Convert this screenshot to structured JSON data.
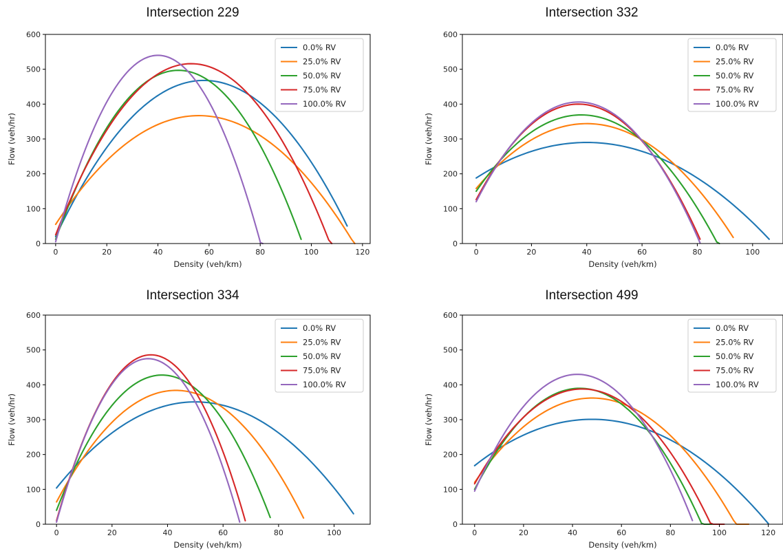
{
  "colors": {
    "series": [
      "#1f77b4",
      "#ff7f0e",
      "#2ca02c",
      "#d62728",
      "#9467bd"
    ],
    "axis": "#000000",
    "legend_border": "#cccccc"
  },
  "chart_data": [
    {
      "type": "line",
      "title": "Intersection 229",
      "xlabel": "Density (veh/km)",
      "ylabel": "Flow (veh/hr)",
      "xlim": [
        -4,
        123
      ],
      "ylim": [
        0,
        600
      ],
      "xticks": [
        0,
        20,
        40,
        60,
        80,
        100,
        120
      ],
      "yticks": [
        0,
        100,
        200,
        300,
        400,
        500,
        600
      ],
      "grid": false,
      "legend_position": "top-right",
      "series": [
        {
          "name": "0.0% RV",
          "vertex": [
            58,
            468
          ],
          "y0": 20,
          "x_end": 114
        },
        {
          "name": "25.0% RV",
          "vertex": [
            56,
            367
          ],
          "y0": 55,
          "x_end": 117
        },
        {
          "name": "50.0% RV",
          "vertex": [
            48,
            497
          ],
          "y0": 12,
          "x_end": 96
        },
        {
          "name": "75.0% RV",
          "vertex": [
            53,
            516
          ],
          "y0": 25,
          "x_end": 108
        },
        {
          "name": "100.0% RV",
          "vertex": [
            40,
            540
          ],
          "y0": 5,
          "x_end": 81
        }
      ]
    },
    {
      "type": "line",
      "title": "Intersection 332",
      "xlabel": "Density (veh/km)",
      "ylabel": "Flow (veh/hr)",
      "xlim": [
        -5,
        111
      ],
      "ylim": [
        0,
        600
      ],
      "xticks": [
        0,
        20,
        40,
        60,
        80,
        100
      ],
      "yticks": [
        0,
        100,
        200,
        300,
        400,
        500,
        600
      ],
      "grid": false,
      "legend_position": "top-right",
      "series": [
        {
          "name": "0.0% RV",
          "vertex": [
            40,
            290
          ],
          "y0": 188,
          "x_end": 106
        },
        {
          "name": "25.0% RV",
          "vertex": [
            40,
            344
          ],
          "y0": 158,
          "x_end": 93
        },
        {
          "name": "50.0% RV",
          "vertex": [
            38,
            369
          ],
          "y0": 150,
          "x_end": 88
        },
        {
          "name": "75.0% RV",
          "vertex": [
            37,
            400
          ],
          "y0": 126,
          "x_end": 81
        },
        {
          "name": "100.0% RV",
          "vertex": [
            37,
            406
          ],
          "y0": 120,
          "x_end": 81
        }
      ]
    },
    {
      "type": "line",
      "title": "Intersection 334",
      "xlabel": "Density (veh/km)",
      "ylabel": "Flow (veh/hr)",
      "xlim": [
        -4,
        113
      ],
      "ylim": [
        0,
        600
      ],
      "xticks": [
        0,
        20,
        40,
        60,
        80,
        100
      ],
      "yticks": [
        0,
        100,
        200,
        300,
        400,
        500,
        600
      ],
      "grid": false,
      "legend_position": "top-right",
      "series": [
        {
          "name": "0.0% RV",
          "vertex": [
            50,
            351
          ],
          "y0": 104,
          "x_end": 107
        },
        {
          "name": "25.0% RV",
          "vertex": [
            43,
            384
          ],
          "y0": 64,
          "x_end": 89
        },
        {
          "name": "50.0% RV",
          "vertex": [
            38,
            428
          ],
          "y0": 40,
          "x_end": 77
        },
        {
          "name": "75.0% RV",
          "vertex": [
            34,
            486
          ],
          "y0": 10,
          "x_end": 68
        },
        {
          "name": "100.0% RV",
          "vertex": [
            33,
            475
          ],
          "y0": 6,
          "x_end": 66
        }
      ]
    },
    {
      "type": "line",
      "title": "Intersection 499",
      "xlabel": "Density (veh/km)",
      "ylabel": "Flow (veh/hr)",
      "xlim": [
        -5,
        126
      ],
      "ylim": [
        0,
        600
      ],
      "xticks": [
        0,
        20,
        40,
        60,
        80,
        100,
        120
      ],
      "yticks": [
        0,
        100,
        200,
        300,
        400,
        500,
        600
      ],
      "grid": false,
      "legend_position": "top-right",
      "series": [
        {
          "name": "0.0% RV",
          "vertex": [
            48,
            301
          ],
          "y0": 168,
          "x_end": 120
        },
        {
          "name": "25.0% RV",
          "vertex": [
            48,
            362
          ],
          "y0": 120,
          "x_end": 112
        },
        {
          "name": "50.0% RV",
          "vertex": [
            43,
            390
          ],
          "y0": 100,
          "x_end": 97
        },
        {
          "name": "75.0% RV",
          "vertex": [
            44,
            388
          ],
          "y0": 116,
          "x_end": 102
        },
        {
          "name": "100.0% RV",
          "vertex": [
            42,
            430
          ],
          "y0": 95,
          "x_end": 89
        }
      ]
    }
  ]
}
